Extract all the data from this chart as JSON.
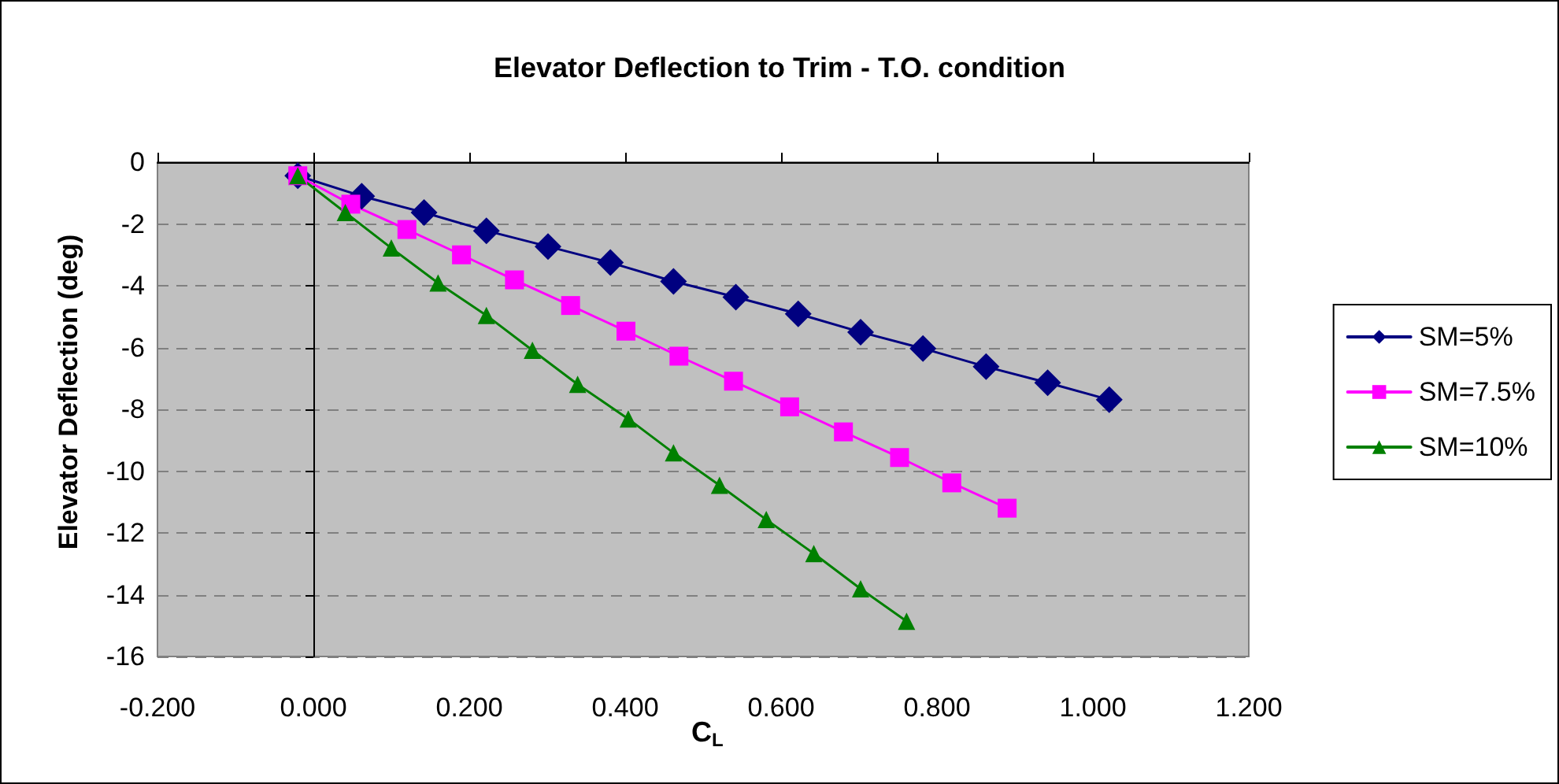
{
  "chart_data": {
    "type": "line",
    "title": "Elevator Deflection to Trim - T.O. condition",
    "xlabel": "C$_{L}$",
    "ylabel": "Elevator Deflection (deg)",
    "xlim": [
      -0.2,
      1.2
    ],
    "xticks": [
      {
        "value": -0.2,
        "label": "-0.200"
      },
      {
        "value": 0,
        "label": "0.000"
      },
      {
        "value": 0.2,
        "label": "0.200"
      },
      {
        "value": 0.4,
        "label": "0.400"
      },
      {
        "value": 0.6,
        "label": "0.600"
      },
      {
        "value": 0.8,
        "label": "0.800"
      },
      {
        "value": 1.0,
        "label": "1.000"
      },
      {
        "value": 1.2,
        "label": "1.200"
      }
    ],
    "ylim": [
      -16,
      0
    ],
    "yticks": [
      -16,
      -14,
      -12,
      -10,
      -8,
      -6,
      -4,
      -2,
      0
    ],
    "grid": "y",
    "legend": "right",
    "line_style": "solid",
    "series": [
      {
        "name": "SM=5%",
        "color": "#000080",
        "marker": "diamond",
        "x": [
          -0.02,
          0.062,
          0.142,
          0.222,
          0.301,
          0.381,
          0.462,
          0.542,
          0.622,
          0.702,
          0.782,
          0.863,
          0.942,
          1.021
        ],
        "values": [
          -0.44,
          -1.1,
          -1.63,
          -2.22,
          -2.73,
          -3.25,
          -3.86,
          -4.37,
          -4.91,
          -5.5,
          -6.03,
          -6.62,
          -7.14,
          -7.69
        ]
      },
      {
        "name": "SM=7.5%",
        "color": "#ff00ff",
        "marker": "square",
        "x": [
          -0.02,
          0.048,
          0.12,
          0.19,
          0.258,
          0.33,
          0.401,
          0.469,
          0.539,
          0.611,
          0.68,
          0.752,
          0.819,
          0.89
        ],
        "values": [
          -0.44,
          -1.36,
          -2.18,
          -3.0,
          -3.81,
          -4.64,
          -5.47,
          -6.28,
          -7.09,
          -7.92,
          -8.73,
          -9.56,
          -10.38,
          -11.2
        ]
      },
      {
        "name": "SM=10%",
        "color": "#008000",
        "marker": "triangle",
        "x": [
          -0.02,
          0.041,
          0.1,
          0.16,
          0.222,
          0.281,
          0.339,
          0.404,
          0.462,
          0.521,
          0.581,
          0.642,
          0.702,
          0.761
        ],
        "values": [
          -0.44,
          -1.63,
          -2.78,
          -3.91,
          -4.96,
          -6.09,
          -7.19,
          -8.31,
          -9.41,
          -10.46,
          -11.57,
          -12.67,
          -13.81,
          -14.86
        ]
      }
    ]
  }
}
